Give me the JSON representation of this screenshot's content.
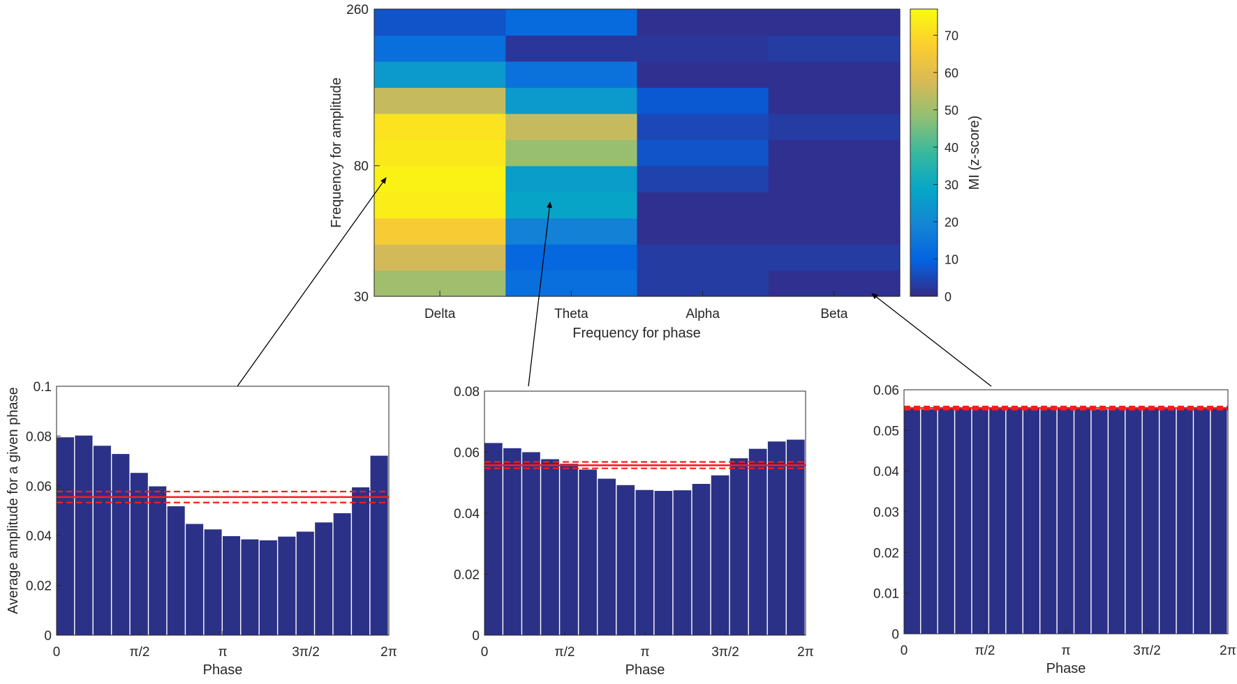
{
  "chart_data": [
    {
      "type": "heatmap",
      "id": "comodulogram",
      "title": "",
      "xlabel": "Frequency for phase",
      "ylabel": "Frequency for amplitude",
      "x_categories": [
        "Delta",
        "Theta",
        "Alpha",
        "Beta"
      ],
      "y_range": [
        30,
        260
      ],
      "y_ticks": [
        "30",
        "80",
        "260"
      ],
      "y_rows_bottom_to_top": 11,
      "values_bottom_to_top": [
        [
          50,
          13,
          3,
          1
        ],
        [
          57,
          11,
          3,
          3
        ],
        [
          66,
          18,
          1,
          1
        ],
        [
          74,
          28,
          1,
          1
        ],
        [
          75,
          26,
          4,
          1
        ],
        [
          73,
          49,
          7,
          1
        ],
        [
          72,
          55,
          5,
          3
        ],
        [
          55,
          25,
          8,
          1
        ],
        [
          25,
          14,
          1,
          1
        ],
        [
          13,
          2,
          2,
          3
        ],
        [
          7,
          12,
          1,
          1
        ]
      ],
      "colorbar": {
        "label": "MI (z-score)",
        "range": [
          0,
          77
        ],
        "ticks": [
          "0",
          "10",
          "20",
          "30",
          "40",
          "50",
          "60",
          "70"
        ],
        "colors": [
          "#352a87",
          "#0363e1",
          "#1485d4",
          "#06a7c6",
          "#38b99e",
          "#92bf73",
          "#d9ba56",
          "#fcce2e",
          "#f9fb0e"
        ]
      }
    },
    {
      "type": "bar",
      "id": "delta",
      "xlabel": "Phase",
      "ylabel": "Average amplitude for a given phase",
      "ylim": [
        0,
        0.1
      ],
      "yticks": [
        "0",
        "0.02",
        "0.04",
        "0.06",
        "0.08",
        "0.1"
      ],
      "xticks": [
        "0",
        "π/2",
        "π",
        "3π/2",
        "2π"
      ],
      "values": [
        0.0795,
        0.0802,
        0.0761,
        0.0728,
        0.0652,
        0.0598,
        0.0518,
        0.0447,
        0.0425,
        0.0398,
        0.0385,
        0.0381,
        0.0396,
        0.0416,
        0.0453,
        0.049,
        0.0594,
        0.0721
      ],
      "threshold_mean": 0.0555,
      "threshold_band": [
        0.0533,
        0.0577
      ],
      "bar_color": "#2b3186",
      "threshold_color": "#ff1a1a"
    },
    {
      "type": "bar",
      "id": "theta",
      "xlabel": "Phase",
      "ylabel": "",
      "ylim": [
        0,
        0.08
      ],
      "yticks": [
        "0",
        "0.02",
        "0.04",
        "0.06",
        "0.08"
      ],
      "xticks": [
        "0",
        "π/2",
        "π",
        "3π/2",
        "2π"
      ],
      "values": [
        0.063,
        0.0613,
        0.06,
        0.0577,
        0.0562,
        0.0543,
        0.0513,
        0.0492,
        0.0476,
        0.0473,
        0.0475,
        0.0496,
        0.0524,
        0.058,
        0.0611,
        0.0635,
        0.0641
      ],
      "threshold_mean": 0.0557,
      "threshold_band": [
        0.0547,
        0.0568
      ],
      "bar_color": "#2b3186",
      "threshold_color": "#ff1a1a"
    },
    {
      "type": "bar",
      "id": "beta",
      "xlabel": "Phase",
      "ylabel": "",
      "ylim": [
        0,
        0.06
      ],
      "yticks": [
        "0",
        "0.01",
        "0.02",
        "0.03",
        "0.04",
        "0.05",
        "0.06"
      ],
      "xticks": [
        "0",
        "π/2",
        "π",
        "3π/2",
        "2π"
      ],
      "values": [
        0.0553,
        0.0552,
        0.0554,
        0.0554,
        0.0556,
        0.0554,
        0.0554,
        0.0555,
        0.0554,
        0.0553,
        0.0553,
        0.0552,
        0.0553,
        0.0554,
        0.0555,
        0.0554,
        0.0553,
        0.0554,
        0.0553
      ],
      "threshold_mean": 0.0555,
      "threshold_band": [
        0.0551,
        0.0559
      ],
      "bar_color": "#2b3186",
      "threshold_color": "#ff1a1a"
    }
  ]
}
